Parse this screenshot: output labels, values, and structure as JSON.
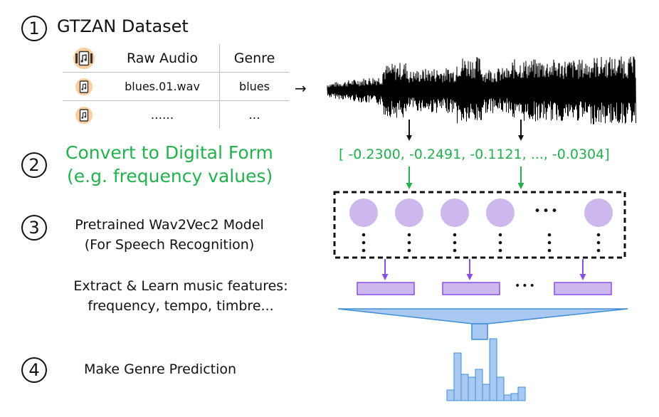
{
  "steps": [
    {
      "number": "1",
      "title": "GTZAN Dataset"
    },
    {
      "number": "2",
      "title_line1": "Convert to Digital Form",
      "title_line2": "(e.g. frequency values)"
    },
    {
      "number": "3",
      "title_line1": "Pretrained Wav2Vec2 Model",
      "title_line2": "(For Speech Recognition)",
      "note_line1": "Extract & Learn music features:",
      "note_line2": "frequency, tempo, timbre..."
    },
    {
      "number": "4",
      "title": "Make Genre Prediction"
    }
  ],
  "table": {
    "header": {
      "col1": "Raw Audio",
      "col2": "Genre"
    },
    "rows": [
      {
        "file": "blues.01.wav",
        "genre": "blues"
      },
      {
        "file": "......",
        "genre": "..."
      }
    ]
  },
  "arrow_label": "→",
  "vector_text": "[ -0.2300, -0.2491, -0.1121, ..., -0.0304]",
  "ellipsis": "•••",
  "icons": [
    "music-file-icon",
    "arrow-right-icon",
    "arrow-down-icon"
  ],
  "colors": {
    "green": "#22b14c",
    "purple_node": "#cdb8ee",
    "purple_arrow": "#8b4ee8",
    "blue_bar": "#a9c8f2",
    "blue_edge": "#3f8fd6"
  }
}
